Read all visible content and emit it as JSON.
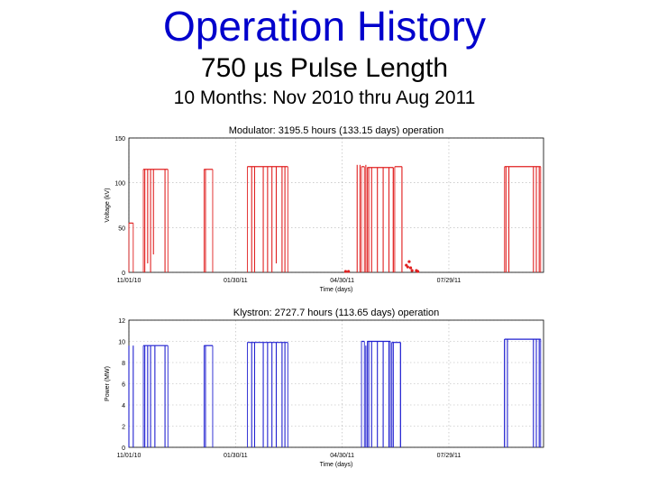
{
  "header": {
    "title": "Operation History",
    "subtitle": "750 µs Pulse Length",
    "period": "10 Months: Nov 2010 thru Aug 2011"
  },
  "colors": {
    "title": "#0000cc",
    "modulator": "#e02020",
    "klystron": "#2020d0",
    "grid": "#b0b0b0"
  },
  "chart_data": [
    {
      "type": "line",
      "title": "Modulator: 3195.5 hours (133.15 days) operation",
      "xlabel": "Time (days)",
      "ylabel": "Voltage (kV)",
      "ylim": [
        0,
        150
      ],
      "yticks": [
        0,
        50,
        100,
        150
      ],
      "xtick_labels": [
        "11/01/10",
        "01/30/11",
        "04/30/11",
        "07/29/11"
      ],
      "xlim": [
        "2010-11-01",
        "2011-08-15"
      ],
      "grid": true,
      "series": [
        {
          "segments": [
            {
              "start": "2010-11-01",
              "end": "2010-11-04",
              "level": 55
            },
            {
              "start": "2010-11-11",
              "end": "2010-11-28",
              "level": 115
            },
            {
              "start": "2010-12-23",
              "end": "2010-12-29",
              "level": 115
            },
            {
              "start": "2011-01-22",
              "end": "2011-02-19",
              "level": 118
            },
            {
              "start": "2011-04-11",
              "end": "2011-04-13",
              "level": 118
            },
            {
              "start": "2011-04-15",
              "end": "2011-05-03",
              "level": 117
            },
            {
              "start": "2011-05-04",
              "end": "2011-05-09",
              "level": 118
            },
            {
              "start": "2011-07-19",
              "end": "2011-08-13",
              "level": 118
            }
          ],
          "spikes": [
            {
              "date": "2010-11-12",
              "level": 0
            },
            {
              "date": "2010-11-14",
              "level": 10
            },
            {
              "date": "2010-11-16",
              "level": 0
            },
            {
              "date": "2010-11-18",
              "level": 20
            },
            {
              "date": "2010-11-26",
              "level": 0
            },
            {
              "date": "2010-12-24",
              "level": 0
            },
            {
              "date": "2011-01-25",
              "level": 0
            },
            {
              "date": "2011-01-27",
              "level": 0
            },
            {
              "date": "2011-02-02",
              "level": 0
            },
            {
              "date": "2011-02-05",
              "level": 0
            },
            {
              "date": "2011-02-08",
              "level": 0
            },
            {
              "date": "2011-02-11",
              "level": 10
            },
            {
              "date": "2011-02-15",
              "level": 0
            },
            {
              "date": "2011-02-17",
              "level": 0
            },
            {
              "date": "2011-04-08",
              "level": 0
            },
            {
              "date": "2011-04-10",
              "level": 0
            },
            {
              "date": "2011-04-14",
              "level": 0
            },
            {
              "date": "2011-04-16",
              "level": 0
            },
            {
              "date": "2011-04-18",
              "level": 0
            },
            {
              "date": "2011-04-22",
              "level": 0
            },
            {
              "date": "2011-04-26",
              "level": 0
            },
            {
              "date": "2011-04-30",
              "level": 0
            },
            {
              "date": "2011-05-03",
              "level": 0
            },
            {
              "date": "2011-05-09",
              "level": 0
            },
            {
              "date": "2011-07-20",
              "level": 0
            },
            {
              "date": "2011-07-22",
              "level": 0
            },
            {
              "date": "2011-08-08",
              "level": 0
            },
            {
              "date": "2011-08-10",
              "level": 0
            },
            {
              "date": "2011-08-12",
              "level": 0
            }
          ],
          "points": [
            {
              "date": "2011-03-31",
              "value": 1
            },
            {
              "date": "2011-04-02",
              "value": 1
            },
            {
              "date": "2011-05-12",
              "value": 8
            },
            {
              "date": "2011-05-13",
              "value": 6
            },
            {
              "date": "2011-05-14",
              "value": 12
            },
            {
              "date": "2011-05-15",
              "value": 5
            },
            {
              "date": "2011-05-16",
              "value": 2
            },
            {
              "date": "2011-05-19",
              "value": 2
            },
            {
              "date": "2011-05-20",
              "value": 1
            }
          ]
        }
      ]
    },
    {
      "type": "line",
      "title": "Klystron: 2727.7 hours (113.65 days) operation",
      "xlabel": "Time (days)",
      "ylabel": "Power (MW)",
      "ylim": [
        0,
        12
      ],
      "yticks": [
        0,
        2,
        4,
        6,
        8,
        10,
        12
      ],
      "xtick_labels": [
        "11/01/10",
        "01/30/11",
        "04/30/11",
        "07/29/11"
      ],
      "xlim": [
        "2010-11-01",
        "2011-08-15"
      ],
      "grid": true,
      "series": [
        {
          "segments": [
            {
              "start": "2010-11-11",
              "end": "2010-11-28",
              "level": 9.6
            },
            {
              "start": "2010-12-23",
              "end": "2010-12-29",
              "level": 9.6
            },
            {
              "start": "2011-01-22",
              "end": "2011-02-19",
              "level": 9.9
            },
            {
              "start": "2011-04-11",
              "end": "2011-04-13",
              "level": 10.0
            },
            {
              "start": "2011-04-15",
              "end": "2011-05-01",
              "level": 10.0
            },
            {
              "start": "2011-05-02",
              "end": "2011-05-08",
              "level": 9.9
            },
            {
              "start": "2011-07-19",
              "end": "2011-08-13",
              "level": 10.2
            }
          ],
          "spikes": [
            {
              "date": "2010-11-01",
              "level": 0
            },
            {
              "date": "2010-11-04",
              "level": 0
            },
            {
              "date": "2010-11-12",
              "level": 0
            },
            {
              "date": "2010-11-14",
              "level": 0
            },
            {
              "date": "2010-11-16",
              "level": 0
            },
            {
              "date": "2010-11-19",
              "level": 0
            },
            {
              "date": "2010-11-26",
              "level": 0
            },
            {
              "date": "2010-12-24",
              "level": 0
            },
            {
              "date": "2011-01-25",
              "level": 0
            },
            {
              "date": "2011-01-27",
              "level": 0
            },
            {
              "date": "2011-02-02",
              "level": 0
            },
            {
              "date": "2011-02-05",
              "level": 0
            },
            {
              "date": "2011-02-08",
              "level": 0
            },
            {
              "date": "2011-02-11",
              "level": 0
            },
            {
              "date": "2011-02-15",
              "level": 0
            },
            {
              "date": "2011-02-17",
              "level": 0
            },
            {
              "date": "2011-04-14",
              "level": 0
            },
            {
              "date": "2011-04-16",
              "level": 0
            },
            {
              "date": "2011-04-18",
              "level": 0
            },
            {
              "date": "2011-04-22",
              "level": 0
            },
            {
              "date": "2011-04-26",
              "level": 0
            },
            {
              "date": "2011-04-30",
              "level": 0
            },
            {
              "date": "2011-05-03",
              "level": 0
            },
            {
              "date": "2011-05-08",
              "level": 0
            },
            {
              "date": "2011-07-19",
              "level": 0
            },
            {
              "date": "2011-07-21",
              "level": 0
            },
            {
              "date": "2011-08-08",
              "level": 0
            },
            {
              "date": "2011-08-10",
              "level": 0
            },
            {
              "date": "2011-08-12",
              "level": 0
            }
          ],
          "points": []
        }
      ]
    }
  ]
}
